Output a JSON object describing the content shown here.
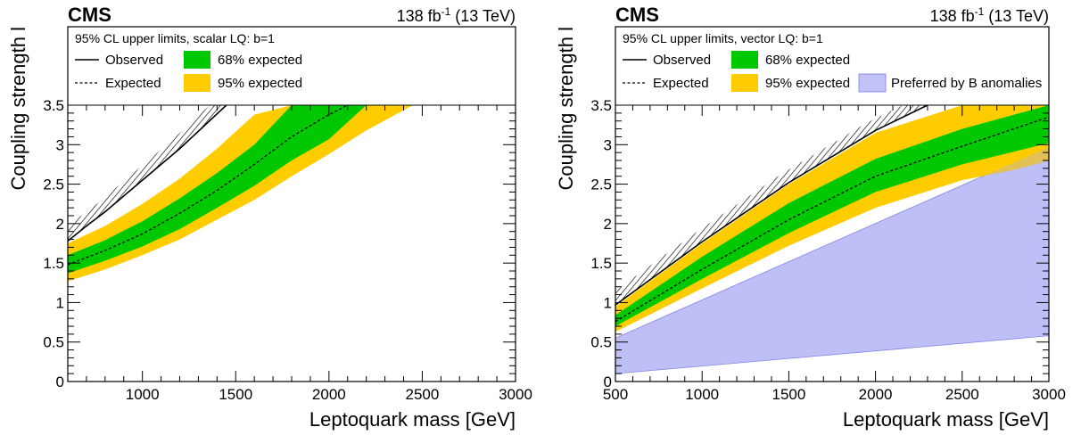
{
  "chart_data": [
    {
      "type": "area",
      "experiment": "CMS",
      "lumi": "138 fb",
      "lumi_exp": "-1",
      "energy": " (13 TeV)",
      "legend_title": "95% CL upper limits, scalar LQ: b=1",
      "xlabel": "Leptoquark mass [GeV]",
      "ylabel": "Coupling strength l",
      "xlim": [
        600,
        3000
      ],
      "ylim": [
        0,
        3.5
      ],
      "xticks": [
        "1000",
        "1500",
        "2000",
        "2500",
        "3000"
      ],
      "xtick_values": [
        1000,
        1500,
        2000,
        2500,
        3000
      ],
      "yticks": [
        "0",
        "0.5",
        "1",
        "1.5",
        "2",
        "2.5",
        "3",
        "3.5"
      ],
      "ytick_values": [
        0,
        0.5,
        1,
        1.5,
        2,
        2.5,
        3,
        3.5
      ],
      "legend": {
        "observed": "Observed",
        "expected": "Expected",
        "band68": "68% expected",
        "band95": "95% expected"
      },
      "colors": {
        "band68": "#00c800",
        "band95": "#ffcc00",
        "line": "#000000"
      },
      "series": [
        {
          "name": "Observed",
          "x": [
            600,
            700,
            800,
            1000,
            1200,
            1450
          ],
          "y": [
            1.78,
            1.97,
            2.15,
            2.55,
            2.95,
            3.5
          ]
        },
        {
          "name": "Expected",
          "x": [
            600,
            800,
            1000,
            1200,
            1400,
            1600,
            1800,
            2000,
            2100
          ],
          "y": [
            1.48,
            1.66,
            1.87,
            2.13,
            2.42,
            2.75,
            3.1,
            3.38,
            3.5
          ]
        },
        {
          "name": "68% expected",
          "x": [
            600,
            800,
            1000,
            1200,
            1400,
            1600,
            1800,
            2000,
            2200
          ],
          "low": [
            1.37,
            1.53,
            1.71,
            1.93,
            2.2,
            2.48,
            2.8,
            3.07,
            3.5
          ],
          "high": [
            1.6,
            1.79,
            2.03,
            2.32,
            2.64,
            3.0,
            3.5,
            3.5,
            3.5
          ]
        },
        {
          "name": "95% expected",
          "x": [
            600,
            800,
            1000,
            1200,
            1400,
            1600,
            1800,
            2000,
            2200,
            2450
          ],
          "low": [
            1.27,
            1.42,
            1.6,
            1.8,
            2.05,
            2.3,
            2.6,
            2.88,
            3.18,
            3.5
          ],
          "high": [
            1.75,
            1.97,
            2.25,
            2.57,
            2.95,
            3.38,
            3.5,
            3.5,
            3.5,
            3.5
          ]
        }
      ]
    },
    {
      "type": "area",
      "experiment": "CMS",
      "lumi": "138 fb",
      "lumi_exp": "-1",
      "energy": " (13 TeV)",
      "legend_title": "95% CL upper limits, vector LQ: b=1",
      "xlabel": "Leptoquark mass [GeV]",
      "ylabel": "Coupling strength l",
      "xlim": [
        500,
        3000
      ],
      "ylim": [
        0,
        3.5
      ],
      "xticks": [
        "500",
        "1000",
        "1500",
        "2000",
        "2500",
        "3000"
      ],
      "xtick_values": [
        500,
        1000,
        1500,
        2000,
        2500,
        3000
      ],
      "yticks": [
        "0",
        "0.5",
        "1",
        "1.5",
        "2",
        "2.5",
        "3",
        "3.5"
      ],
      "ytick_values": [
        0,
        0.5,
        1,
        1.5,
        2,
        2.5,
        3,
        3.5
      ],
      "legend": {
        "observed": "Observed",
        "expected": "Expected",
        "band68": "68% expected",
        "band95": "95% expected",
        "preferred": "Preferred by B anomalies"
      },
      "colors": {
        "band68": "#00c800",
        "band95": "#ffcc00",
        "line": "#000000",
        "preferred": "#a9a9f5"
      },
      "series": [
        {
          "name": "Observed",
          "x": [
            500,
            1000,
            1500,
            2000,
            2300
          ],
          "y": [
            0.97,
            1.77,
            2.52,
            3.18,
            3.5
          ]
        },
        {
          "name": "Expected",
          "x": [
            500,
            1000,
            1500,
            2000,
            2500,
            3000
          ],
          "y": [
            0.76,
            1.42,
            2.05,
            2.6,
            2.98,
            3.35
          ]
        },
        {
          "name": "68% expected",
          "x": [
            500,
            1000,
            1500,
            2000,
            2500,
            3000
          ],
          "low": [
            0.7,
            1.3,
            1.88,
            2.4,
            2.75,
            3.02
          ],
          "high": [
            0.84,
            1.58,
            2.26,
            2.82,
            3.2,
            3.5
          ]
        },
        {
          "name": "95% expected",
          "x": [
            500,
            1000,
            1500,
            2000,
            2500,
            2800,
            3000
          ],
          "low": [
            0.63,
            1.18,
            1.72,
            2.2,
            2.55,
            2.68,
            2.8
          ],
          "high": [
            0.95,
            1.75,
            2.5,
            3.15,
            3.5,
            3.5,
            3.5
          ]
        },
        {
          "name": "Preferred by B anomalies",
          "x": [
            500,
            3000
          ],
          "low": [
            0.1,
            0.58
          ],
          "high": [
            0.55,
            2.97
          ]
        }
      ]
    }
  ]
}
